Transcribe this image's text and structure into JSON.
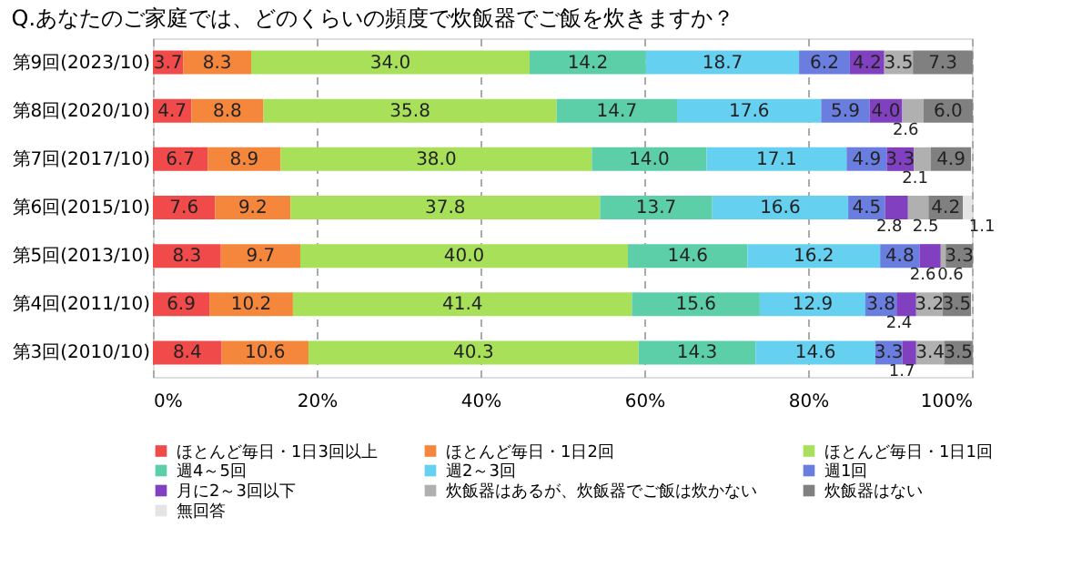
{
  "chart_data": {
    "type": "bar",
    "orientation": "horizontal",
    "stacked": true,
    "title": "Q.あなたのご家庭では、どのくらいの頻度で炊飯器でご飯を炊きますか？",
    "categories": [
      "第9回(2023/10)",
      "第8回(2020/10)",
      "第7回(2017/10)",
      "第6回(2015/10)",
      "第5回(2013/10)",
      "第4回(2011/10)",
      "第3回(2010/10)"
    ],
    "series": [
      {
        "name": "ほとんど毎日・1日3回以上",
        "color": "#f04a4a",
        "values": [
          3.7,
          4.7,
          6.7,
          7.6,
          8.3,
          6.9,
          8.4
        ],
        "value_labels": [
          "3.7",
          "4.7",
          "6.7",
          "7.6",
          "8.3",
          "6.9",
          "8.4"
        ]
      },
      {
        "name": "ほとんど毎日・1日2回",
        "color": "#f5873c",
        "values": [
          8.3,
          8.8,
          8.9,
          9.2,
          9.7,
          10.2,
          10.6
        ],
        "value_labels": [
          "8.3",
          "8.8",
          "8.9",
          "9.2",
          "9.7",
          "10.2",
          "10.6"
        ]
      },
      {
        "name": "ほとんど毎日・1日1回",
        "color": "#a8e05a",
        "values": [
          34.0,
          35.8,
          38.0,
          37.8,
          40.0,
          41.4,
          40.3
        ],
        "value_labels": [
          "34.0",
          "35.8",
          "38.0",
          "37.8",
          "40.0",
          "41.4",
          "40.3"
        ]
      },
      {
        "name": "週4～5回",
        "color": "#5ccfa8",
        "values": [
          14.2,
          14.7,
          14.0,
          13.7,
          14.6,
          15.6,
          14.3
        ],
        "value_labels": [
          "14.2",
          "14.7",
          "14.0",
          "13.7",
          "14.6",
          "15.6",
          "14.3"
        ]
      },
      {
        "name": "週2～3回",
        "color": "#66d0f0",
        "values": [
          18.7,
          17.6,
          17.1,
          16.6,
          16.2,
          12.9,
          14.6
        ],
        "value_labels": [
          "18.7",
          "17.6",
          "17.1",
          "16.6",
          "16.2",
          "12.9",
          "14.6"
        ]
      },
      {
        "name": "週1回",
        "color": "#6a7ee0",
        "values": [
          6.2,
          5.9,
          4.9,
          4.5,
          4.8,
          3.8,
          3.3
        ],
        "value_labels": [
          "6.2",
          "5.9",
          "4.9",
          "4.5",
          "4.8",
          "3.8",
          "3.3"
        ]
      },
      {
        "name": "月に2～3回以下",
        "color": "#8040c0",
        "values": [
          4.2,
          4.0,
          3.3,
          2.8,
          2.6,
          2.4,
          1.7
        ],
        "value_labels": [
          "4.2",
          "4.0",
          "3.3",
          "2.8",
          "2.6",
          "2.4",
          "1.7"
        ]
      },
      {
        "name": "炊飯器はあるが、炊飯器でご飯は炊かない",
        "color": "#b0b0b0",
        "values": [
          3.5,
          2.6,
          2.1,
          2.5,
          0.6,
          3.2,
          3.4
        ],
        "value_labels": [
          "3.5",
          "2.6",
          "2.1",
          "2.5",
          "0.6",
          "3.2",
          "3.4"
        ]
      },
      {
        "name": "炊飯器はない",
        "color": "#808080",
        "values": [
          7.3,
          6.0,
          4.9,
          4.2,
          3.3,
          3.5,
          3.5
        ],
        "value_labels": [
          "7.3",
          "6.0",
          "4.9",
          "4.2",
          "3.3",
          "3.5",
          "3.5"
        ]
      },
      {
        "name": "無回答",
        "color": "#e4e4e4",
        "values": [
          null,
          null,
          null,
          1.1,
          null,
          null,
          null
        ],
        "value_labels": [
          null,
          null,
          null,
          "1.1",
          null,
          null,
          null
        ]
      }
    ],
    "xlim": [
      0,
      100
    ],
    "xticks": [
      {
        "value": 0,
        "label": "0%"
      },
      {
        "value": 20,
        "label": "20%"
      },
      {
        "value": 40,
        "label": "40%"
      },
      {
        "value": 60,
        "label": "60%"
      },
      {
        "value": 80,
        "label": "80%"
      },
      {
        "value": 100,
        "label": "100%"
      }
    ],
    "grid": "x",
    "legend": "bottom"
  }
}
